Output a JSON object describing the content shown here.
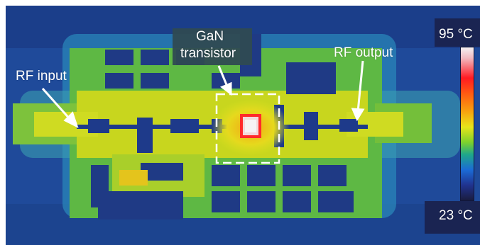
{
  "image": {
    "annotations": {
      "rf_input": "RF input",
      "rf_output": "RF output",
      "gan_line1": "GaN",
      "gan_line2": "transistor"
    },
    "scale": {
      "max_label": "95 °C",
      "min_label": "23 °C"
    },
    "colors": {
      "background_blue": "#1d3f8c",
      "board_green": "#7cc63a",
      "board_yellow": "#d9df20",
      "hotspot_red": "#ff2a2a",
      "hotspot_white": "#f2eef0",
      "label_box": "#2f4a52"
    }
  }
}
